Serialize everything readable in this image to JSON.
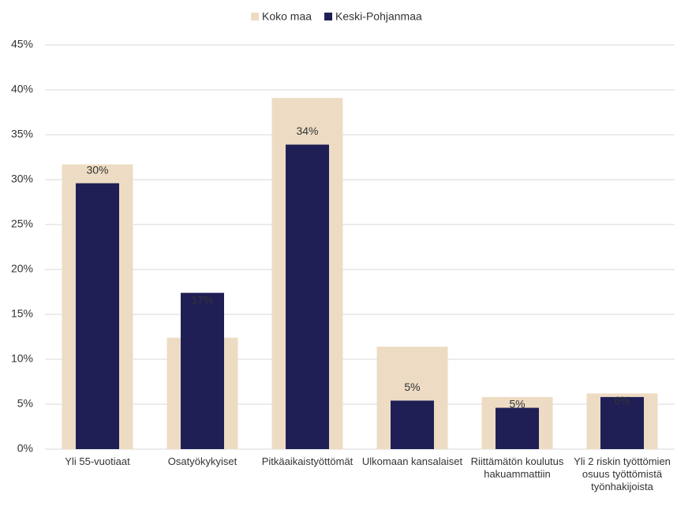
{
  "chart_data": {
    "type": "bar",
    "categories": [
      "Yli 55-vuotiaat",
      "Osatyökykyiset",
      "Pitkäaikaistyöttömät",
      "Ulkomaan kansalaiset",
      "Riittämätön koulutus hakuammattiin",
      "Yli 2 riskin työttömien osuus työttömistä työnhakijoista"
    ],
    "series": [
      {
        "name": "Koko maa",
        "color": "#eddcc3",
        "values": [
          31.7,
          12.4,
          39.1,
          11.4,
          5.8,
          6.2
        ]
      },
      {
        "name": "Keski-Pohjanmaa",
        "color": "#1f1f56",
        "values": [
          29.6,
          17.4,
          33.9,
          5.4,
          4.6,
          5.8
        ],
        "value_labels": [
          "30%",
          "17%",
          "34%",
          "5%",
          "5%",
          "6%"
        ]
      }
    ],
    "ylim": [
      0,
      45
    ],
    "yticks": [
      {
        "value": 0,
        "label": "0%"
      },
      {
        "value": 5,
        "label": "5%"
      },
      {
        "value": 10,
        "label": "10%"
      },
      {
        "value": 15,
        "label": "15%"
      },
      {
        "value": 20,
        "label": "20%"
      },
      {
        "value": 25,
        "label": "25%"
      },
      {
        "value": 30,
        "label": "30%"
      },
      {
        "value": 35,
        "label": "35%"
      },
      {
        "value": 40,
        "label": "40%"
      },
      {
        "value": 45,
        "label": "45%"
      }
    ],
    "grid": true,
    "legend": "top"
  }
}
